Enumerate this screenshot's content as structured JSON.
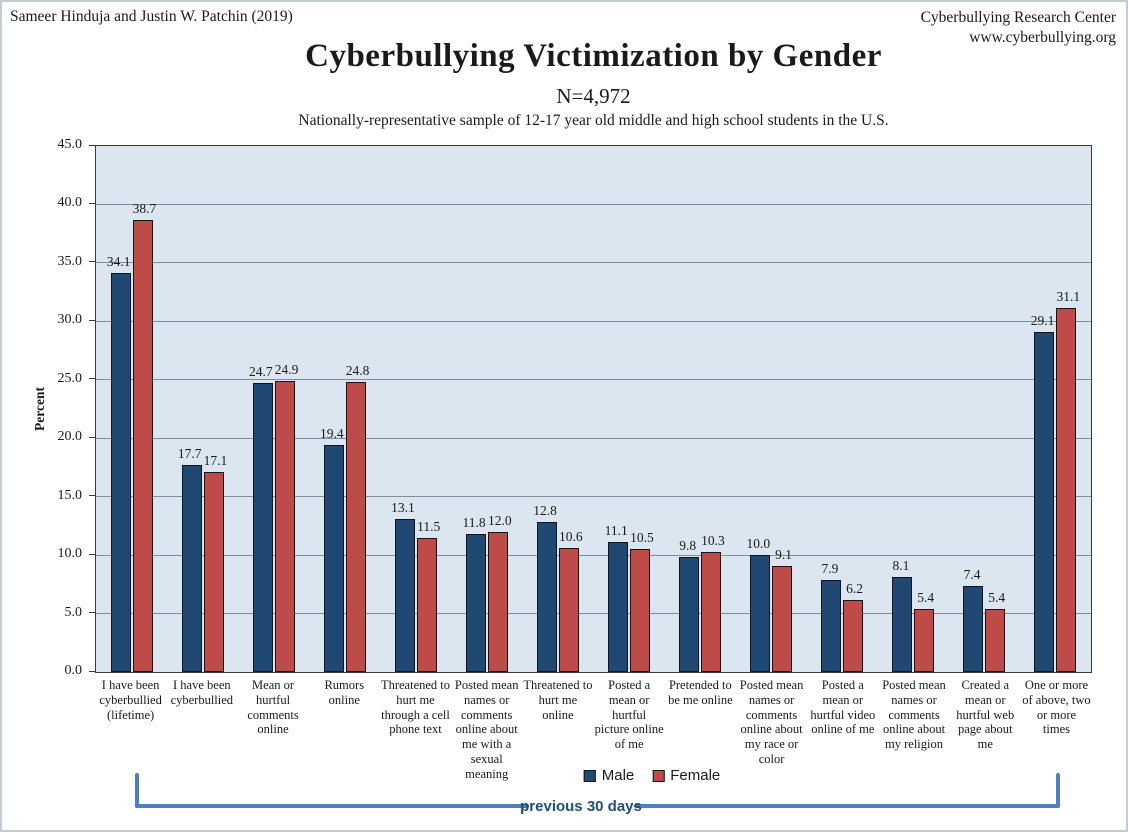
{
  "header": {
    "left_credit": "Sameer Hinduja and Justin W. Patchin (2019)",
    "right_org": "Cyberbullying Research Center",
    "right_url": "www.cyberbullying.org"
  },
  "chart_data": {
    "type": "bar",
    "title": "Cyberbullying Victimization by Gender",
    "n_label": "N=4,972",
    "subtitle": "Nationally-representative sample of 12-17 year old middle and high school students in the U.S.",
    "ylabel": "Percent",
    "xlabel": "",
    "ylim": [
      0,
      45
    ],
    "yticks": [
      "0.0",
      "5.0",
      "10.0",
      "15.0",
      "20.0",
      "25.0",
      "30.0",
      "35.0",
      "40.0",
      "45.0"
    ],
    "grid": true,
    "legend_position": "bottom",
    "categories": [
      "I have been cyberbullied (lifetime)",
      "I have been cyberbullied",
      "Mean or hurtful comments online",
      "Rumors online",
      "Threatened to hurt me through a cell phone text",
      "Posted mean names or comments online about me with a sexual meaning",
      "Threatened to hurt me online",
      "Posted a mean or hurtful picture online of me",
      "Pretended to be me online",
      "Posted mean names or comments online about my race or color",
      "Posted a mean or hurtful video online of me",
      "Posted mean names or comments online about my religion",
      "Created a mean or hurtful web page about me",
      "One or more of above, two or more times"
    ],
    "series": [
      {
        "name": "Male",
        "color": "#1F4973",
        "values": [
          34.1,
          17.7,
          24.7,
          19.4,
          13.1,
          11.8,
          12.8,
          11.1,
          9.8,
          10.0,
          7.9,
          8.1,
          7.4,
          29.1
        ]
      },
      {
        "name": "Female",
        "color": "#BE4B48",
        "values": [
          38.7,
          17.1,
          24.9,
          24.8,
          11.5,
          12.0,
          10.6,
          10.5,
          10.3,
          9.1,
          6.2,
          5.4,
          5.4,
          31.1
        ]
      }
    ],
    "annotation": {
      "label": "previous 30 days",
      "line_color": "#4D80BC",
      "label_color": "#1F4E79"
    }
  },
  "colors": {
    "male_bar": "#1F4973",
    "female_bar": "#BE4B48",
    "plot_background": "#DCE6F1",
    "gridline": "#808C9B"
  }
}
